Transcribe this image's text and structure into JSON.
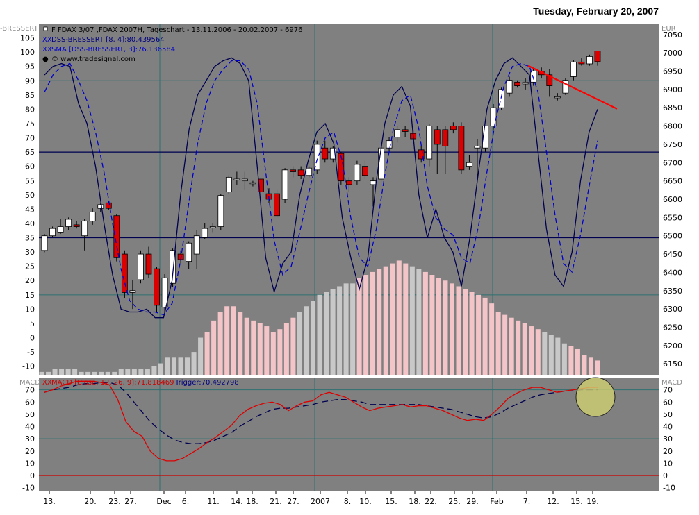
{
  "header": {
    "date": "Tuesday, February 20, 2007"
  },
  "main_panel": {
    "left_indicator_label": "-BRESSERT",
    "right_price_label": "EUR",
    "legend": [
      {
        "text": "F FDAX 3/07 ,FDAX 2007H, Tageschart - 13.11.2006 - 20.02.2007 - 6976",
        "color": "#000000"
      },
      {
        "text": "DSS-BRESSERT [8, 4]:80.439564",
        "color": "#000080"
      },
      {
        "text": "SMA [DSS-BRESSERT, 3]:76.136584",
        "color": "#0000cc"
      },
      {
        "text": "© www.tradesignal.com",
        "color": "#000000"
      }
    ],
    "y_left_ticks": [
      105,
      100,
      95,
      90,
      85,
      80,
      75,
      70,
      65,
      60,
      55,
      50,
      45,
      40,
      35,
      30,
      25,
      20,
      15,
      10,
      5,
      0,
      -5,
      -10
    ],
    "y_right_ticks": [
      7050,
      7000,
      6950,
      6900,
      6850,
      6800,
      6750,
      6700,
      6650,
      6600,
      6550,
      6500,
      6450,
      6400,
      6350,
      6300,
      6250,
      6200,
      6150
    ]
  },
  "macd_panel": {
    "left_label": "MACD",
    "right_label": "MACD",
    "legend": [
      {
        "text": "MACD [Close, 12, 26, 9]:71.818469",
        "color": "#cc0000"
      },
      {
        "text": "Trigger:70.492798",
        "color": "#000080"
      }
    ],
    "y_ticks": [
      70,
      60,
      50,
      40,
      30,
      20,
      10,
      0,
      -10
    ]
  },
  "x_axis": {
    "labels": [
      "13.",
      "20.",
      "23.",
      "27.",
      "Dec",
      "6.",
      "11.",
      "14.",
      "18.",
      "21.",
      "27.",
      "2007",
      "8.",
      "10.",
      "15.",
      "18.",
      "22.",
      "25.",
      "29.",
      "Feb",
      "7.",
      "12.",
      "15.",
      "19."
    ]
  },
  "colors": {
    "plot_bg": "#808080",
    "grid": "#2e7070",
    "up_candle": "#ffffff",
    "down_candle": "#dd0000",
    "dss": "#000050",
    "dss_sma": "#0000cc",
    "macd": "#dd0000",
    "trigger": "#000050",
    "trend_line": "#ff0000",
    "histogram_gray": "#c8c8c8",
    "histogram_pink": "#f3c5c8",
    "highlight_circle": "#cfcf70"
  },
  "chart_data": [
    {
      "type": "candlestick",
      "title": "F FDAX 3/07 ,FDAX 2007H, Tageschart - 13.11.2006 - 20.02.2007 - 6976",
      "ylabel_right": "EUR",
      "ylim_price": [
        6120,
        7080
      ],
      "ylim_indicator": [
        -13,
        110
      ],
      "horizontal_lines_indicator": [
        65,
        35
      ],
      "grid": true,
      "x_labels": [
        "13.",
        "20.",
        "23.",
        "27.",
        "Dec",
        "6.",
        "11.",
        "14.",
        "18.",
        "21.",
        "27.",
        "2007",
        "8.",
        "10.",
        "15.",
        "18.",
        "22.",
        "25.",
        "29.",
        "Feb",
        "7.",
        "12.",
        "15.",
        "19."
      ],
      "candles": [
        [
          6460,
          6500,
          6455,
          6505
        ],
        [
          6500,
          6520,
          6495,
          6525
        ],
        [
          6510,
          6525,
          6505,
          6545
        ],
        [
          6525,
          6545,
          6515,
          6550
        ],
        [
          6530,
          6525,
          6520,
          6540
        ],
        [
          6500,
          6540,
          6460,
          6545
        ],
        [
          6540,
          6565,
          6530,
          6575
        ],
        [
          6575,
          6585,
          6565,
          6590
        ],
        [
          6590,
          6575,
          6570,
          6595
        ],
        [
          6555,
          6440,
          6430,
          6560
        ],
        [
          6450,
          6345,
          6330,
          6460
        ],
        [
          6345,
          6350,
          6300,
          6380
        ],
        [
          6380,
          6450,
          6370,
          6460
        ],
        [
          6450,
          6395,
          6385,
          6470
        ],
        [
          6410,
          6310,
          6290,
          6415
        ],
        [
          6305,
          6385,
          6290,
          6395
        ],
        [
          6370,
          6460,
          6360,
          6465
        ],
        [
          6450,
          6435,
          6425,
          6460
        ],
        [
          6430,
          6480,
          6410,
          6485
        ],
        [
          6450,
          6500,
          6410,
          6515
        ],
        [
          6495,
          6520,
          6490,
          6535
        ],
        [
          6525,
          6525,
          6510,
          6535
        ],
        [
          6525,
          6610,
          6515,
          6615
        ],
        [
          6620,
          6660,
          6615,
          6665
        ],
        [
          6655,
          6655,
          6640,
          6675
        ],
        [
          6650,
          6655,
          6625,
          6675
        ],
        [
          6645,
          6645,
          6635,
          6650
        ],
        [
          6655,
          6620,
          6610,
          6660
        ],
        [
          6615,
          6600,
          6590,
          6630
        ],
        [
          6615,
          6555,
          6550,
          6625
        ],
        [
          6600,
          6680,
          6590,
          6685
        ],
        [
          6680,
          6675,
          6660,
          6690
        ],
        [
          6680,
          6665,
          6655,
          6690
        ],
        [
          6665,
          6685,
          6660,
          6690
        ],
        [
          6680,
          6750,
          6670,
          6760
        ],
        [
          6740,
          6710,
          6700,
          6760
        ],
        [
          6710,
          6740,
          6700,
          6745
        ],
        [
          6725,
          6650,
          6640,
          6730
        ],
        [
          6650,
          6640,
          6620,
          6660
        ],
        [
          6650,
          6695,
          6640,
          6705
        ],
        [
          6690,
          6665,
          6655,
          6705
        ],
        [
          6640,
          6650,
          6580,
          6660
        ],
        [
          6655,
          6740,
          6640,
          6745
        ],
        [
          6740,
          6760,
          6730,
          6770
        ],
        [
          6770,
          6790,
          6755,
          6800
        ],
        [
          6790,
          6785,
          6770,
          6800
        ],
        [
          6780,
          6765,
          6750,
          6790
        ],
        [
          6735,
          6710,
          6700,
          6745
        ],
        [
          6710,
          6800,
          6690,
          6805
        ],
        [
          6790,
          6750,
          6670,
          6800
        ],
        [
          6790,
          6745,
          6670,
          6800
        ],
        [
          6800,
          6790,
          6780,
          6810
        ],
        [
          6800,
          6680,
          6670,
          6810
        ],
        [
          6690,
          6700,
          6680,
          6720
        ],
        [
          6740,
          6745,
          6660,
          6765
        ],
        [
          6740,
          6800,
          6730,
          6800
        ],
        [
          6800,
          6850,
          6790,
          6860
        ],
        [
          6850,
          6900,
          6845,
          6905
        ],
        [
          6890,
          6925,
          6880,
          6935
        ],
        [
          6920,
          6910,
          6905,
          6925
        ],
        [
          6915,
          6920,
          6900,
          6930
        ],
        [
          6920,
          6950,
          6910,
          6955
        ],
        [
          6950,
          6940,
          6930,
          6960
        ],
        [
          6940,
          6910,
          6880,
          6955
        ],
        [
          6880,
          6880,
          6870,
          6890
        ],
        [
          6890,
          6925,
          6885,
          6930
        ],
        [
          6935,
          6975,
          6925,
          6980
        ],
        [
          6975,
          6970,
          6965,
          6985
        ],
        [
          6970,
          6990,
          6965,
          6995
        ],
        [
          7005,
          6976,
          6965,
          7005
        ]
      ],
      "dss_bressert": [
        92,
        95,
        96,
        95,
        82,
        75,
        60,
        40,
        22,
        10,
        9,
        9,
        10,
        7,
        7,
        20,
        50,
        73,
        85,
        90,
        95,
        97,
        98,
        96,
        90,
        60,
        28,
        16,
        26,
        30,
        50,
        62,
        72,
        75,
        68,
        42,
        28,
        17,
        28,
        55,
        75,
        85,
        88,
        81,
        50,
        35,
        45,
        35,
        30,
        18,
        35,
        58,
        80,
        90,
        96,
        98,
        95,
        92,
        65,
        38,
        22,
        18,
        30,
        55,
        72,
        80
      ],
      "dss_sma": [
        86,
        92,
        95,
        96,
        90,
        83,
        72,
        58,
        40,
        24,
        13,
        10,
        9,
        9,
        8,
        12,
        27,
        48,
        68,
        82,
        90,
        94,
        97,
        97,
        94,
        82,
        58,
        34,
        22,
        25,
        37,
        50,
        62,
        70,
        72,
        62,
        42,
        28,
        25,
        38,
        57,
        73,
        83,
        85,
        73,
        53,
        42,
        38,
        36,
        28,
        26,
        39,
        58,
        76,
        88,
        95,
        96,
        95,
        86,
        65,
        43,
        26,
        23,
        36,
        53,
        69
      ],
      "histogram": [
        -12,
        -12,
        -11,
        -11,
        -11,
        -11,
        -12,
        -12,
        -12,
        -12,
        -12,
        -12,
        -11,
        -11,
        -11,
        -11,
        -11,
        -10,
        -9,
        -7,
        -7,
        -7,
        -7,
        -5,
        0,
        2,
        6,
        9,
        11,
        11,
        9,
        7,
        6,
        5,
        4,
        2,
        3,
        5,
        7,
        9,
        11,
        13,
        15,
        16,
        17,
        18,
        19,
        19,
        21,
        22,
        23,
        24,
        25,
        26,
        27,
        26,
        25,
        24,
        23,
        22,
        21,
        20,
        19,
        18,
        17,
        16,
        15,
        14,
        12,
        9,
        8,
        7,
        6,
        5,
        4,
        3,
        2,
        1,
        0,
        -2,
        -3,
        -4,
        -6,
        -7,
        -8
      ]
    },
    {
      "type": "line",
      "title": "MACD [Close, 12, 26, 9]",
      "ylim": [
        -13,
        80
      ],
      "series": [
        {
          "name": "MACD [Close, 12, 26, 9]",
          "values": [
            68,
            70,
            73,
            75,
            77,
            77,
            77,
            76,
            74,
            62,
            44,
            36,
            32,
            20,
            14,
            12,
            12,
            14,
            18,
            22,
            27,
            31,
            36,
            41,
            49,
            54,
            57,
            59,
            60,
            58,
            53,
            57,
            60,
            61,
            66,
            68,
            66,
            64,
            60,
            56,
            53,
            55,
            56,
            57,
            58,
            56,
            57,
            57,
            55,
            53,
            50,
            47,
            45,
            46,
            45,
            50,
            56,
            63,
            67,
            70,
            72,
            72,
            70,
            68,
            69,
            70,
            71,
            72,
            72
          ]
        },
        {
          "name": "Trigger",
          "values": [
            68,
            70,
            71,
            72,
            74,
            75,
            75,
            76,
            76,
            74,
            68,
            60,
            52,
            44,
            38,
            33,
            29,
            27,
            26,
            26,
            27,
            29,
            32,
            35,
            40,
            44,
            48,
            51,
            54,
            55,
            55,
            56,
            57,
            58,
            60,
            61,
            62,
            62,
            61,
            60,
            58,
            58,
            58,
            58,
            58,
            58,
            58,
            57,
            56,
            55,
            54,
            52,
            50,
            48,
            47,
            48,
            51,
            55,
            58,
            61,
            64,
            66,
            67,
            68,
            69,
            69,
            70,
            70,
            70
          ]
        }
      ]
    }
  ]
}
